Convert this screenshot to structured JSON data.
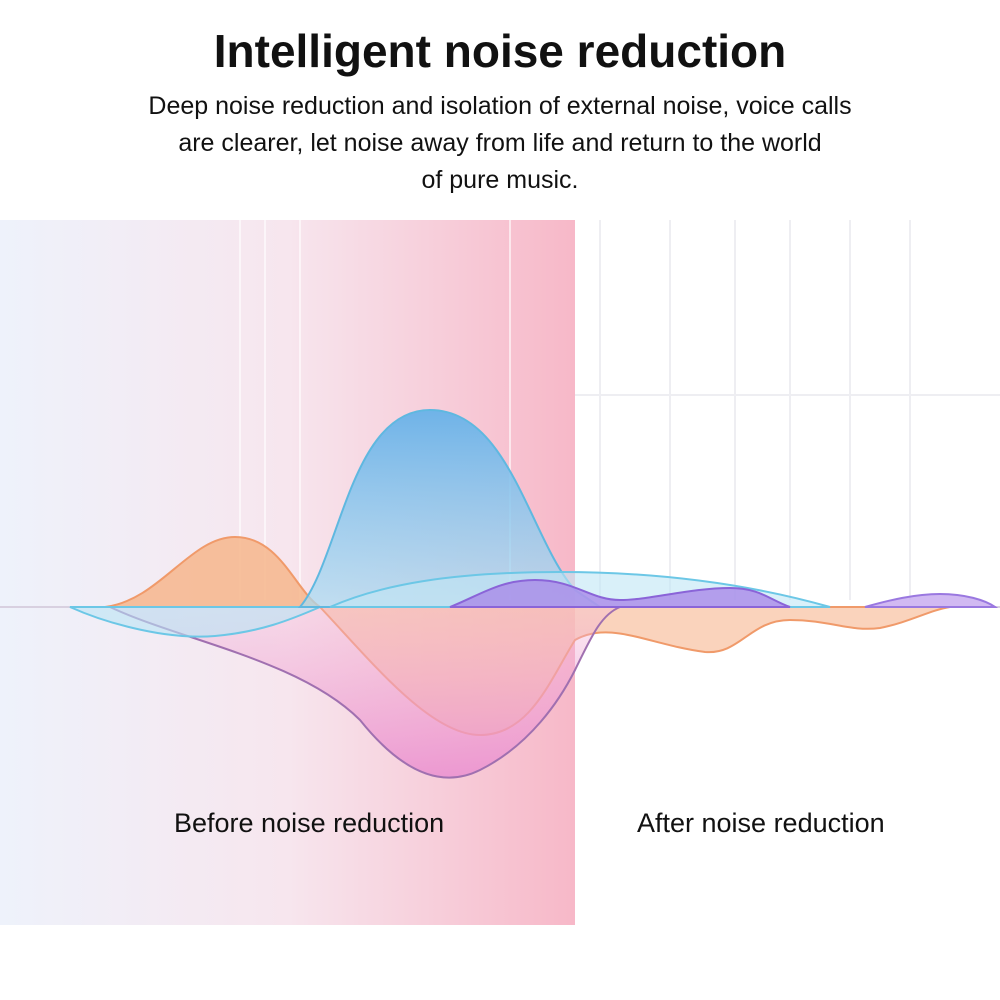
{
  "title": "Intelligent noise reduction",
  "description": [
    "Deep noise reduction and isolation of external noise, voice calls",
    "are clearer, let noise away from life and return to the world",
    "of pure music."
  ],
  "labels": {
    "before": "Before noise reduction",
    "after": "After noise reduction"
  }
}
